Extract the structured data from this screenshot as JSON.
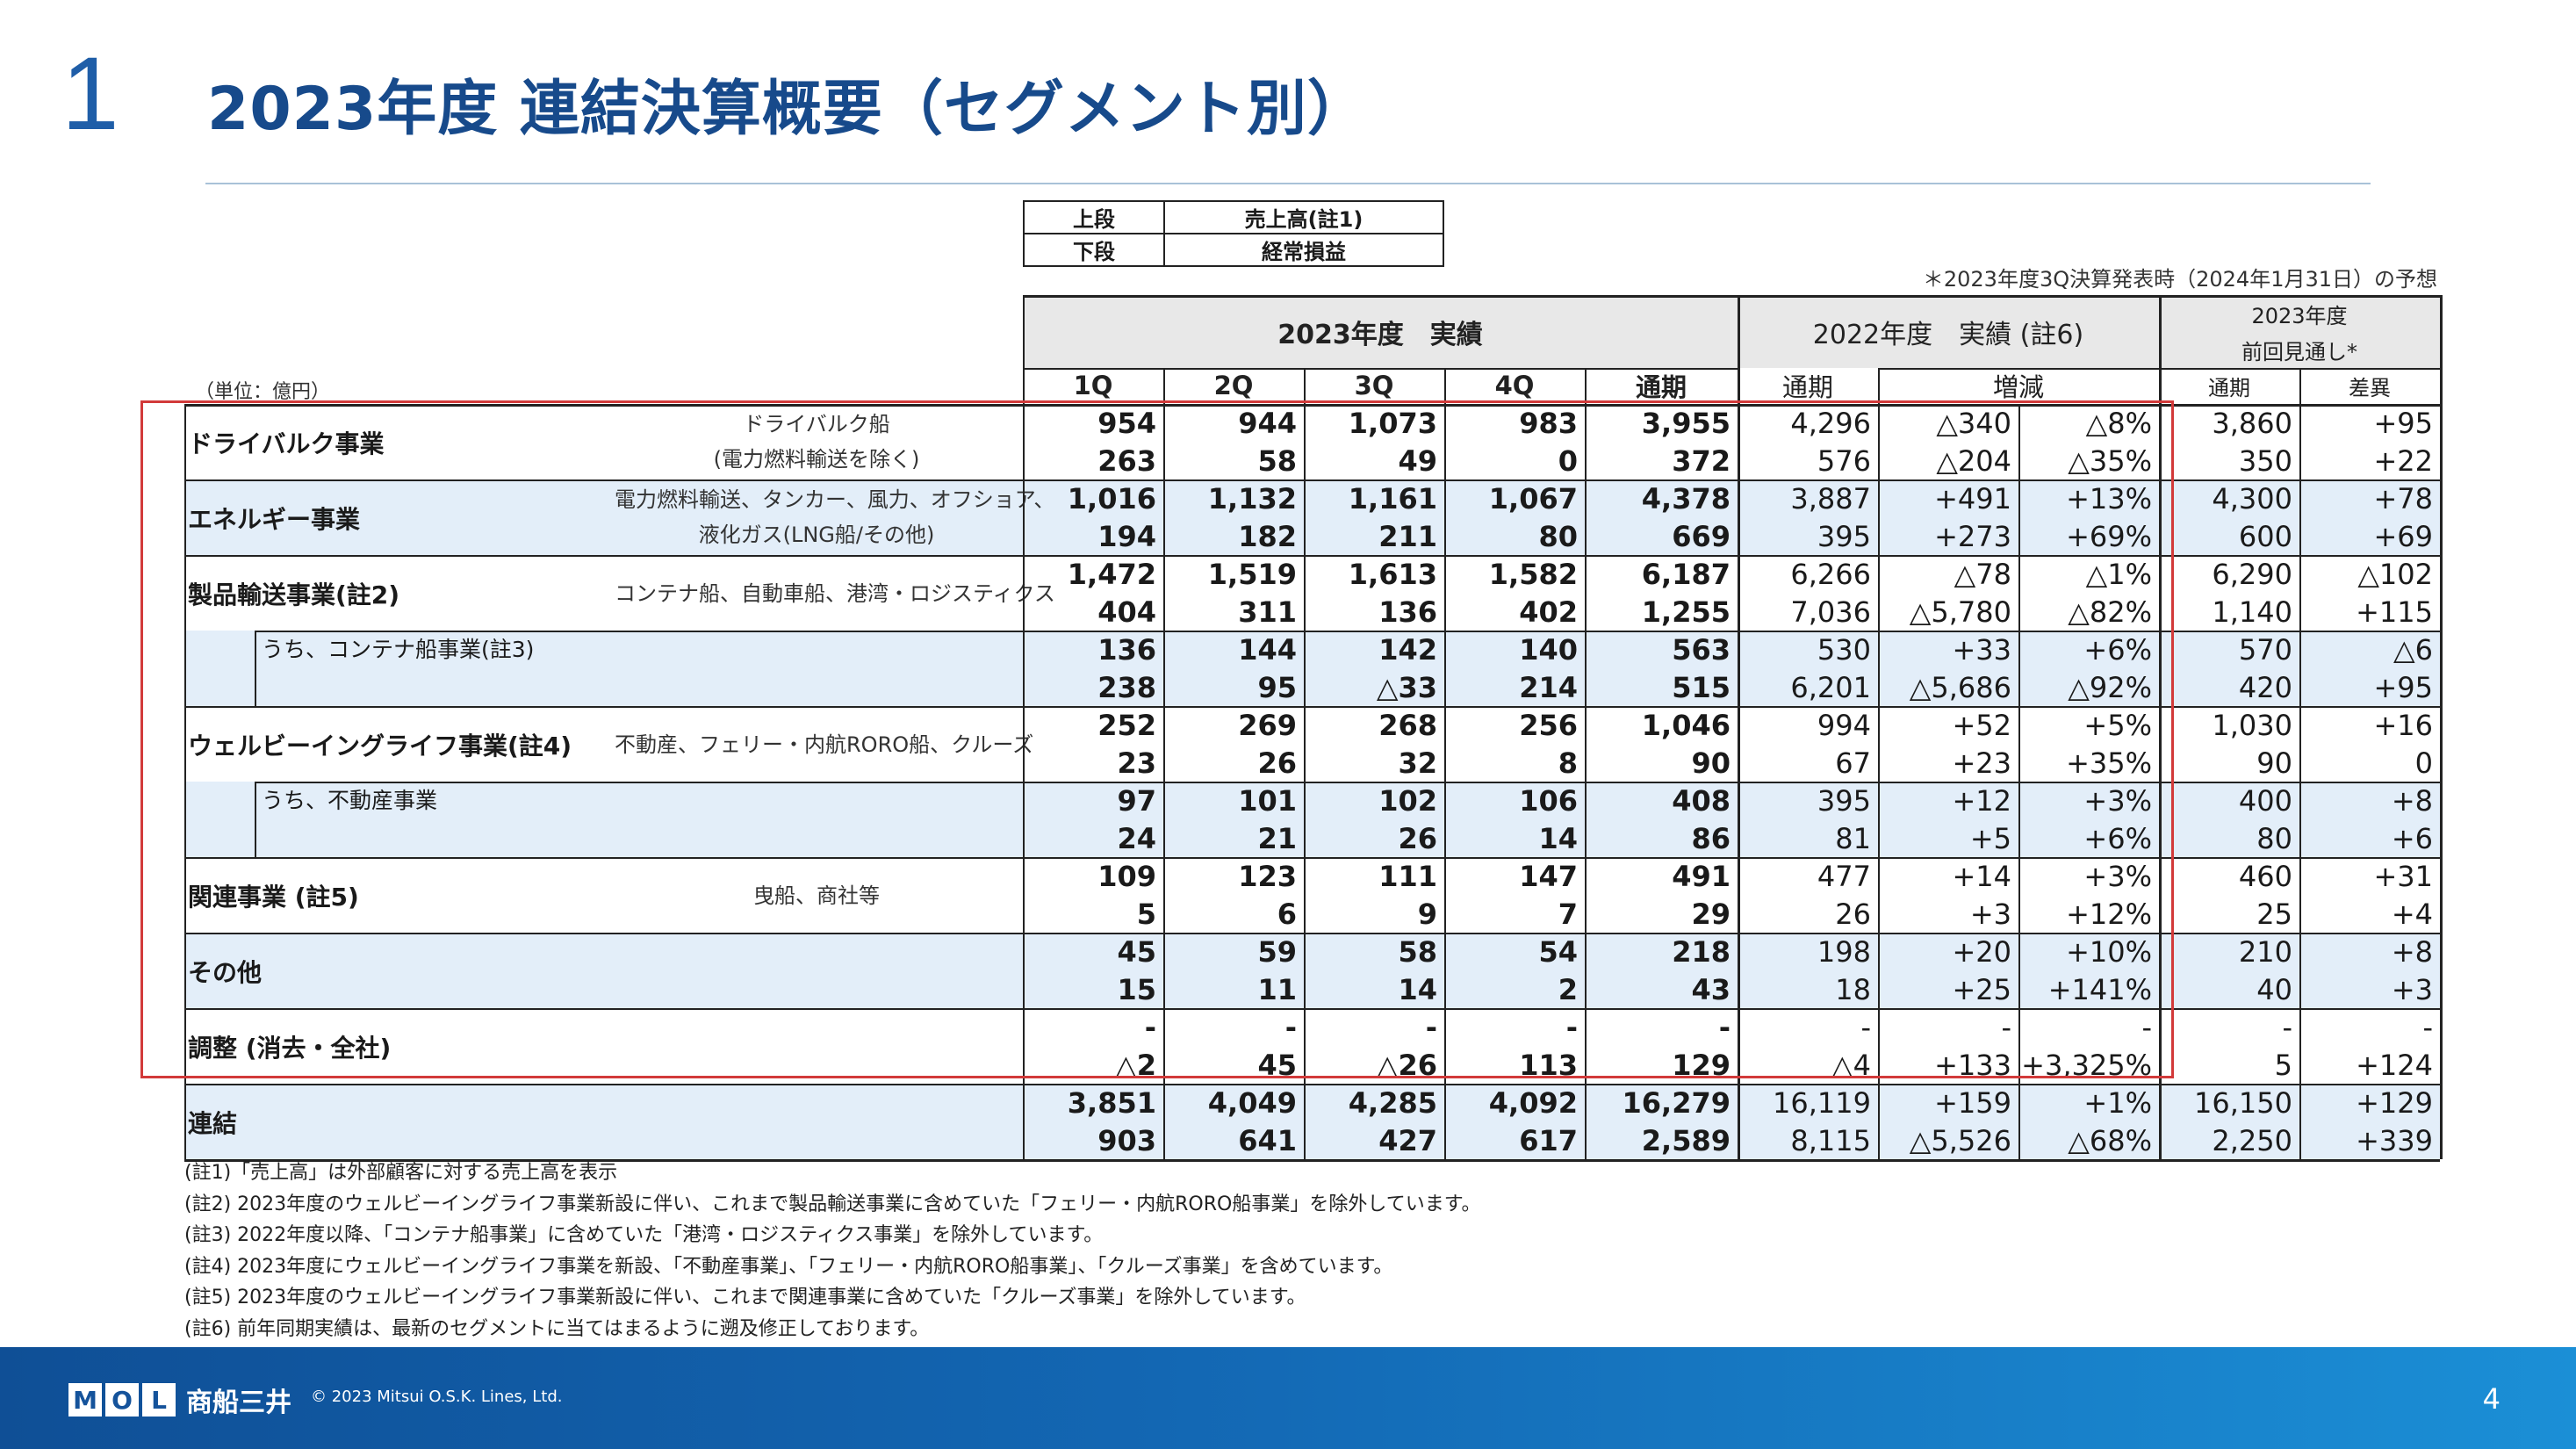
{
  "slide": {
    "section_number": "1",
    "title": "2023年度 連結決算概要（セグメント別）",
    "page_number": "4"
  },
  "legend": {
    "upper_key": "上段",
    "upper_value": "売上高(註1)",
    "lower_key": "下段",
    "lower_value": "経常損益"
  },
  "forecast_note": "＊2023年度3Q決算発表時（2024年1月31日）の予想",
  "unit_label": "（単位：億円）",
  "headers": {
    "fy2023_actual": "2023年度　実績",
    "q1": "1Q",
    "q2": "2Q",
    "q3": "3Q",
    "q4": "4Q",
    "full_year": "通期",
    "fy2022_actual": "2022年度　実績 (註6)",
    "fy2022_full_year": "通期",
    "change": "増減",
    "prev_forecast_line1": "2023年度",
    "prev_forecast_line2": "前回見通し*",
    "forecast_full_year": "通期",
    "difference": "差異"
  },
  "rows": [
    {
      "name": "ドライバルク事業",
      "desc": [
        "ドライバルク船",
        "(電力燃料輸送を除く)"
      ],
      "upper": [
        "954",
        "944",
        "1,073",
        "983",
        "3,955",
        "4,296",
        "△340",
        "△8%",
        "3,860",
        "+95"
      ],
      "lower": [
        "263",
        "58",
        "49",
        "0",
        "372",
        "576",
        "△204",
        "△35%",
        "350",
        "+22"
      ]
    },
    {
      "name": "エネルギー事業",
      "desc": [
        "電力燃料輸送、タンカー、風力、オフショア、",
        "液化ガス(LNG船/その他)"
      ],
      "upper": [
        "1,016",
        "1,132",
        "1,161",
        "1,067",
        "4,378",
        "3,887",
        "+491",
        "+13%",
        "4,300",
        "+78"
      ],
      "lower": [
        "194",
        "182",
        "211",
        "80",
        "669",
        "395",
        "+273",
        "+69%",
        "600",
        "+69"
      ]
    },
    {
      "name": "製品輸送事業(註2)",
      "desc": [
        "コンテナ船、自動車船、港湾・ロジスティクス"
      ],
      "upper": [
        "1,472",
        "1,519",
        "1,613",
        "1,582",
        "6,187",
        "6,266",
        "△78",
        "△1%",
        "6,290",
        "△102"
      ],
      "lower": [
        "404",
        "311",
        "136",
        "402",
        "1,255",
        "7,036",
        "△5,780",
        "△82%",
        "1,140",
        "+115"
      ]
    },
    {
      "name": "うち、コンテナ船事業(註3)",
      "desc": [],
      "upper": [
        "136",
        "144",
        "142",
        "140",
        "563",
        "530",
        "+33",
        "+6%",
        "570",
        "△6"
      ],
      "lower": [
        "238",
        "95",
        "△33",
        "214",
        "515",
        "6,201",
        "△5,686",
        "△92%",
        "420",
        "+95"
      ]
    },
    {
      "name": "ウェルビーイングライフ事業(註4)",
      "desc": [
        "不動産、フェリー・内航RORO船、クルーズ"
      ],
      "upper": [
        "252",
        "269",
        "268",
        "256",
        "1,046",
        "994",
        "+52",
        "+5%",
        "1,030",
        "+16"
      ],
      "lower": [
        "23",
        "26",
        "32",
        "8",
        "90",
        "67",
        "+23",
        "+35%",
        "90",
        "0"
      ]
    },
    {
      "name": "うち、不動産事業",
      "desc": [],
      "upper": [
        "97",
        "101",
        "102",
        "106",
        "408",
        "395",
        "+12",
        "+3%",
        "400",
        "+8"
      ],
      "lower": [
        "24",
        "21",
        "26",
        "14",
        "86",
        "81",
        "+5",
        "+6%",
        "80",
        "+6"
      ]
    },
    {
      "name": "関連事業 (註5)",
      "desc": [
        "曳船、商社等"
      ],
      "upper": [
        "109",
        "123",
        "111",
        "147",
        "491",
        "477",
        "+14",
        "+3%",
        "460",
        "+31"
      ],
      "lower": [
        "5",
        "6",
        "9",
        "7",
        "29",
        "26",
        "+3",
        "+12%",
        "25",
        "+4"
      ]
    },
    {
      "name": "その他",
      "desc": [],
      "upper": [
        "45",
        "59",
        "58",
        "54",
        "218",
        "198",
        "+20",
        "+10%",
        "210",
        "+8"
      ],
      "lower": [
        "15",
        "11",
        "14",
        "2",
        "43",
        "18",
        "+25",
        "+141%",
        "40",
        "+3"
      ]
    },
    {
      "name": "調整 (消去・全社)",
      "desc": [],
      "upper": [
        "-",
        "-",
        "-",
        "-",
        "-",
        "-",
        "-",
        "-",
        "-",
        "-"
      ],
      "lower": [
        "△2",
        "45",
        "△26",
        "113",
        "129",
        "△4",
        "+133",
        "+3,325%",
        "5",
        "+124"
      ]
    },
    {
      "name": "連結",
      "desc": [],
      "upper": [
        "3,851",
        "4,049",
        "4,285",
        "4,092",
        "16,279",
        "16,119",
        "+159",
        "+1%",
        "16,150",
        "+129"
      ],
      "lower": [
        "903",
        "641",
        "427",
        "617",
        "2,589",
        "8,115",
        "△5,526",
        "△68%",
        "2,250",
        "+339"
      ]
    }
  ],
  "footnotes": [
    "(註1)「売上高」は外部顧客に対する売上高を表示",
    "(註2) 2023年度のウェルビーイングライフ事業新設に伴い、これまで製品輸送事業に含めていた「フェリー・内航RORO船事業」を除外しています。",
    "(註3) 2022年度以降、「コンテナ船事業」に含めていた「港湾・ロジスティクス事業」を除外しています。",
    "(註4) 2023年度にウェルビーイングライフ事業を新設、「不動産事業」、「フェリー・内航RORO船事業」、「クルーズ事業」を含めています。",
    "(註5) 2023年度のウェルビーイングライフ事業新設に伴い、これまで関連事業に含めていた「クルーズ事業」を除外しています。",
    "(註6) 前年同期実績は、最新のセグメントに当てはまるように遡及修正しております。"
  ],
  "footer": {
    "logo_letters": [
      "M",
      "O",
      "L"
    ],
    "company_name": "商船三井",
    "copyright": "© 2023 Mitsui O.S.K. Lines, Ltd."
  },
  "colors": {
    "title_blue": "#174a8b",
    "band_blue": "#e3eef9",
    "highlight_red": "#d23a3a",
    "footer_blue": "#1367b3"
  }
}
